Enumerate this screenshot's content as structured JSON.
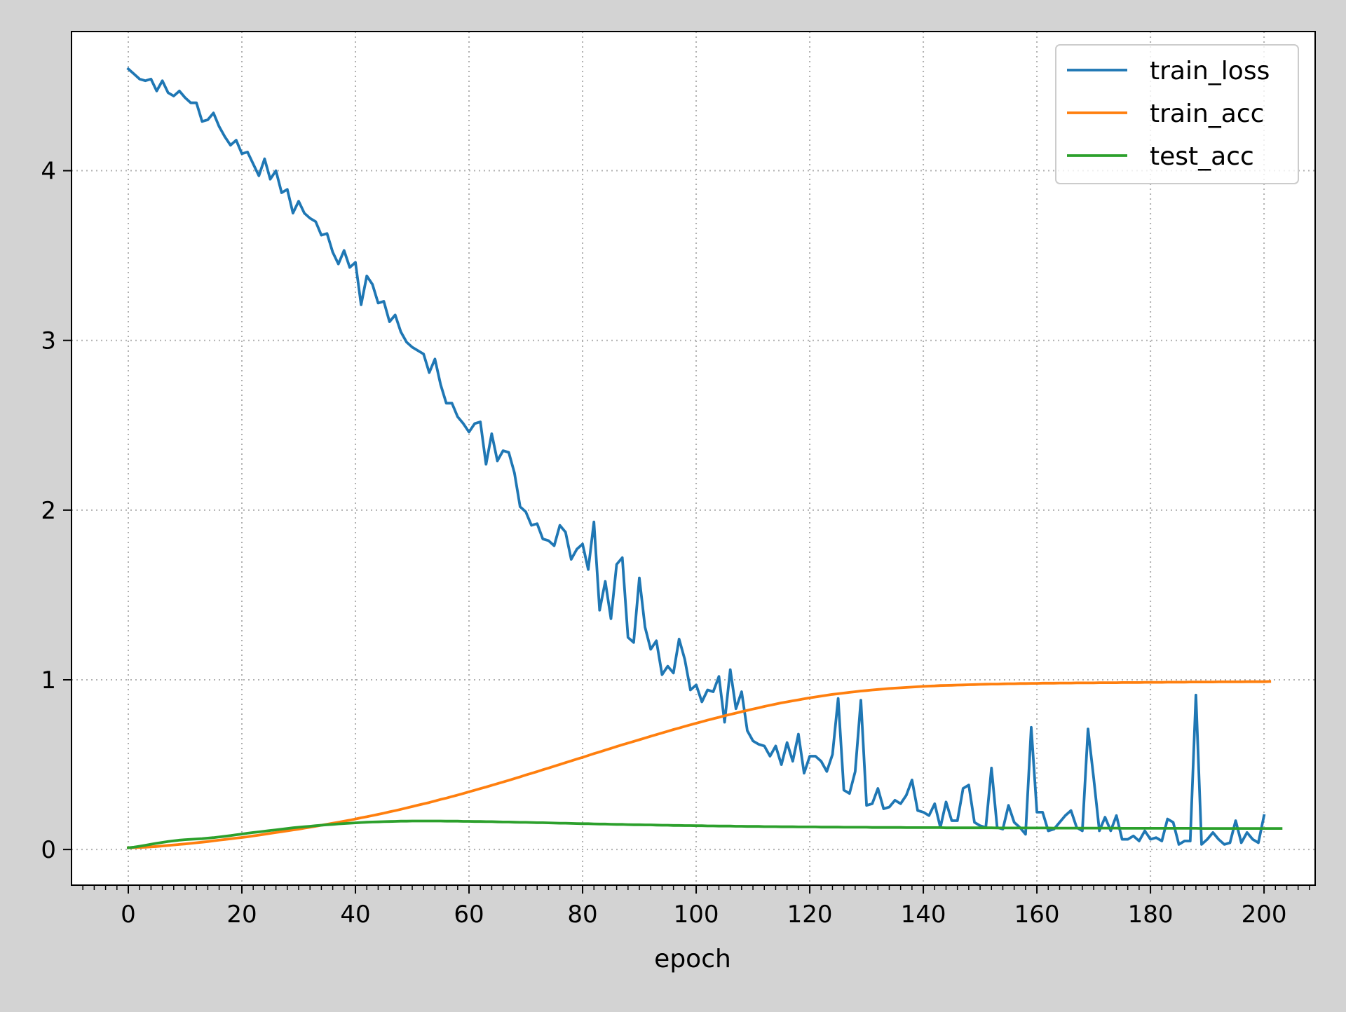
{
  "chart_data": {
    "type": "line",
    "xlabel": "epoch",
    "ylabel": "",
    "xlim": [
      -10,
      209
    ],
    "ylim": [
      -0.21,
      4.82
    ],
    "xticks": [
      0,
      20,
      40,
      60,
      80,
      100,
      120,
      140,
      160,
      180,
      200
    ],
    "yticks": [
      0,
      1,
      2,
      3,
      4
    ],
    "grid": true,
    "legend_position": "top-right",
    "colors": {
      "train_loss": "#1f77b4",
      "train_acc": "#ff7f0e",
      "test_acc": "#2ca02c"
    },
    "series": [
      {
        "name": "train_loss",
        "color": "#1f77b4",
        "values": [
          4.6,
          4.57,
          4.54,
          4.53,
          4.54,
          4.47,
          4.53,
          4.46,
          4.44,
          4.47,
          4.43,
          4.4,
          4.4,
          4.29,
          4.3,
          4.34,
          4.26,
          4.2,
          4.15,
          4.18,
          4.1,
          4.11,
          4.04,
          3.97,
          4.07,
          3.95,
          4.0,
          3.87,
          3.89,
          3.75,
          3.82,
          3.75,
          3.72,
          3.7,
          3.62,
          3.63,
          3.52,
          3.45,
          3.53,
          3.43,
          3.46,
          3.21,
          3.38,
          3.33,
          3.22,
          3.23,
          3.11,
          3.15,
          3.05,
          2.99,
          2.96,
          2.94,
          2.92,
          2.81,
          2.89,
          2.74,
          2.63,
          2.63,
          2.55,
          2.51,
          2.46,
          2.51,
          2.52,
          2.27,
          2.45,
          2.29,
          2.35,
          2.34,
          2.22,
          2.02,
          1.99,
          1.91,
          1.92,
          1.83,
          1.82,
          1.79,
          1.91,
          1.87,
          1.71,
          1.77,
          1.8,
          1.65,
          1.93,
          1.41,
          1.58,
          1.36,
          1.68,
          1.72,
          1.25,
          1.22,
          1.6,
          1.31,
          1.18,
          1.23,
          1.03,
          1.08,
          1.04,
          1.24,
          1.12,
          0.94,
          0.97,
          0.87,
          0.94,
          0.93,
          1.02,
          0.75,
          1.06,
          0.83,
          0.93,
          0.7,
          0.64,
          0.62,
          0.61,
          0.55,
          0.61,
          0.5,
          0.63,
          0.52,
          0.68,
          0.45,
          0.55,
          0.55,
          0.52,
          0.46,
          0.56,
          0.89,
          0.35,
          0.33,
          0.46,
          0.88,
          0.26,
          0.27,
          0.36,
          0.24,
          0.25,
          0.29,
          0.27,
          0.32,
          0.41,
          0.23,
          0.22,
          0.2,
          0.27,
          0.13,
          0.28,
          0.17,
          0.17,
          0.36,
          0.38,
          0.16,
          0.14,
          0.13,
          0.48,
          0.13,
          0.12,
          0.26,
          0.16,
          0.13,
          0.09,
          0.72,
          0.22,
          0.22,
          0.11,
          0.12,
          0.16,
          0.2,
          0.23,
          0.13,
          0.11,
          0.71,
          0.42,
          0.11,
          0.19,
          0.11,
          0.2,
          0.06,
          0.06,
          0.08,
          0.05,
          0.11,
          0.06,
          0.07,
          0.05,
          0.18,
          0.16,
          0.03,
          0.05,
          0.05,
          0.91,
          0.03,
          0.06,
          0.1,
          0.06,
          0.03,
          0.04,
          0.17,
          0.04,
          0.1,
          0.06,
          0.04,
          0.2
        ]
      },
      {
        "name": "train_acc",
        "color": "#ff7f0e",
        "values": [
          0.01,
          0.011,
          0.012,
          0.014,
          0.016,
          0.018,
          0.021,
          0.024,
          0.027,
          0.03,
          0.033,
          0.036,
          0.04,
          0.043,
          0.047,
          0.051,
          0.055,
          0.059,
          0.063,
          0.067,
          0.071,
          0.075,
          0.08,
          0.085,
          0.09,
          0.095,
          0.1,
          0.105,
          0.11,
          0.115,
          0.12,
          0.126,
          0.131,
          0.137,
          0.143,
          0.149,
          0.155,
          0.161,
          0.167,
          0.173,
          0.18,
          0.187,
          0.193,
          0.2,
          0.207,
          0.214,
          0.222,
          0.229,
          0.237,
          0.245,
          0.253,
          0.261,
          0.269,
          0.277,
          0.286,
          0.295,
          0.303,
          0.312,
          0.321,
          0.33,
          0.34,
          0.349,
          0.359,
          0.368,
          0.378,
          0.388,
          0.398,
          0.408,
          0.418,
          0.428,
          0.439,
          0.449,
          0.459,
          0.47,
          0.48,
          0.491,
          0.501,
          0.512,
          0.522,
          0.533,
          0.543,
          0.554,
          0.565,
          0.575,
          0.586,
          0.596,
          0.607,
          0.617,
          0.627,
          0.637,
          0.647,
          0.657,
          0.667,
          0.677,
          0.687,
          0.697,
          0.707,
          0.716,
          0.726,
          0.735,
          0.744,
          0.753,
          0.762,
          0.771,
          0.779,
          0.788,
          0.796,
          0.804,
          0.812,
          0.82,
          0.828,
          0.835,
          0.843,
          0.85,
          0.857,
          0.864,
          0.87,
          0.876,
          0.882,
          0.888,
          0.894,
          0.899,
          0.904,
          0.909,
          0.914,
          0.918,
          0.922,
          0.926,
          0.93,
          0.934,
          0.937,
          0.94,
          0.943,
          0.946,
          0.949,
          0.951,
          0.953,
          0.955,
          0.957,
          0.959,
          0.961,
          0.963,
          0.964,
          0.966,
          0.967,
          0.968,
          0.969,
          0.97,
          0.971,
          0.972,
          0.973,
          0.974,
          0.975,
          0.975,
          0.976,
          0.977,
          0.977,
          0.978,
          0.978,
          0.979,
          0.979,
          0.98,
          0.98,
          0.98,
          0.981,
          0.981,
          0.981,
          0.982,
          0.982,
          0.982,
          0.982,
          0.983,
          0.983,
          0.983,
          0.983,
          0.984,
          0.984,
          0.984,
          0.984,
          0.985,
          0.985,
          0.985,
          0.985,
          0.986,
          0.986,
          0.986,
          0.986,
          0.987,
          0.987,
          0.987,
          0.987,
          0.987,
          0.988,
          0.988,
          0.988,
          0.988,
          0.988,
          0.989,
          0.989,
          0.989,
          0.989,
          0.99
        ]
      },
      {
        "name": "test_acc",
        "color": "#2ca02c",
        "values": [
          0.01,
          0.014,
          0.019,
          0.025,
          0.031,
          0.037,
          0.042,
          0.047,
          0.051,
          0.055,
          0.058,
          0.06,
          0.062,
          0.064,
          0.067,
          0.07,
          0.074,
          0.078,
          0.082,
          0.087,
          0.091,
          0.096,
          0.1,
          0.104,
          0.108,
          0.112,
          0.116,
          0.12,
          0.124,
          0.128,
          0.131,
          0.134,
          0.137,
          0.14,
          0.143,
          0.146,
          0.148,
          0.151,
          0.153,
          0.155,
          0.157,
          0.159,
          0.161,
          0.162,
          0.163,
          0.164,
          0.165,
          0.166,
          0.167,
          0.167,
          0.168,
          0.168,
          0.168,
          0.168,
          0.168,
          0.168,
          0.167,
          0.167,
          0.167,
          0.166,
          0.166,
          0.165,
          0.165,
          0.164,
          0.164,
          0.163,
          0.162,
          0.162,
          0.161,
          0.16,
          0.16,
          0.159,
          0.158,
          0.158,
          0.157,
          0.156,
          0.155,
          0.155,
          0.154,
          0.153,
          0.152,
          0.152,
          0.151,
          0.15,
          0.15,
          0.149,
          0.148,
          0.148,
          0.147,
          0.146,
          0.146,
          0.145,
          0.145,
          0.144,
          0.143,
          0.143,
          0.142,
          0.142,
          0.141,
          0.141,
          0.14,
          0.14,
          0.139,
          0.139,
          0.138,
          0.138,
          0.138,
          0.137,
          0.137,
          0.136,
          0.136,
          0.136,
          0.135,
          0.135,
          0.135,
          0.134,
          0.134,
          0.134,
          0.133,
          0.133,
          0.133,
          0.133,
          0.132,
          0.132,
          0.132,
          0.132,
          0.131,
          0.131,
          0.131,
          0.131,
          0.131,
          0.13,
          0.13,
          0.13,
          0.13,
          0.13,
          0.13,
          0.129,
          0.129,
          0.129,
          0.129,
          0.129,
          0.129,
          0.129,
          0.128,
          0.128,
          0.128,
          0.128,
          0.128,
          0.128,
          0.128,
          0.128,
          0.128,
          0.127,
          0.127,
          0.127,
          0.127,
          0.127,
          0.127,
          0.127,
          0.127,
          0.127,
          0.127,
          0.126,
          0.126,
          0.126,
          0.126,
          0.126,
          0.126,
          0.126,
          0.126,
          0.126,
          0.126,
          0.126,
          0.126,
          0.125,
          0.125,
          0.125,
          0.125,
          0.125,
          0.125,
          0.125,
          0.125,
          0.125,
          0.125,
          0.125,
          0.125,
          0.125,
          0.125,
          0.124,
          0.124,
          0.124,
          0.124,
          0.124,
          0.124,
          0.124,
          0.124,
          0.124,
          0.124,
          0.124,
          0.124,
          0.124,
          0.124,
          0.124
        ]
      }
    ]
  }
}
